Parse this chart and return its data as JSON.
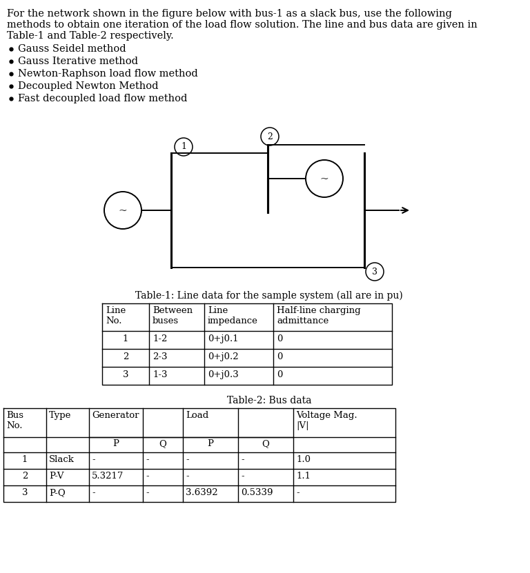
{
  "bg_color": "#ffffff",
  "text_color": "#000000",
  "line1": "For the network shown in the figure below with bus-1 as a slack bus, use the following",
  "line2": "methods to obtain one iteration of the load flow solution. The line and bus data are given in",
  "line3": "Table-1 and Table-2 respectively.",
  "bullets": [
    "Gauss Seidel method",
    "Gauss Iterative method",
    "Newton-Raphson load flow method",
    "Decoupled Newton Method",
    "Fast decoupled load flow method"
  ],
  "table1_title": "Table-1: Line data for the sample system (all are in pu)",
  "table1_headers": [
    "Line\nNo.",
    "Between\nbuses",
    "Line\nimpedance",
    "Half-line charging\nadmittance"
  ],
  "table1_data": [
    [
      "1",
      "1-2",
      "0+j0.1",
      "0"
    ],
    [
      "2",
      "2-3",
      "0+j0.2",
      "0"
    ],
    [
      "3",
      "1-3",
      "0+j0.3",
      "0"
    ]
  ],
  "table2_title": "Table-2: Bus data",
  "table2_data": [
    [
      "1",
      "Slack",
      "-",
      "-",
      "-",
      "-",
      "1.0"
    ],
    [
      "2",
      "P-V",
      "5.3217",
      "-",
      "-",
      "-",
      "1.1"
    ],
    [
      "3",
      "P-Q",
      "-",
      "-",
      "3.6392",
      "0.5339",
      "-"
    ]
  ],
  "font_family": "serif",
  "fontsize": 10.5,
  "fontsize_small": 9.5,
  "fontsize_table": 9.5
}
